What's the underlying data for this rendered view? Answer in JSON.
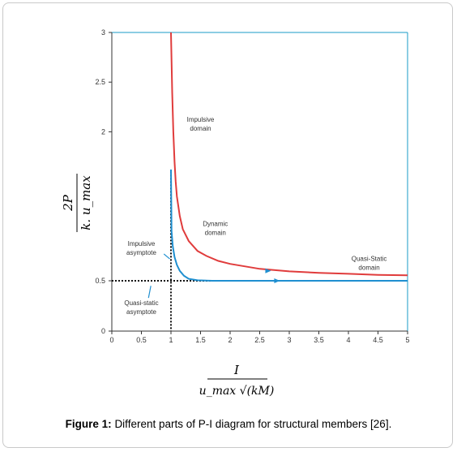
{
  "caption": {
    "label": "Figure 1:",
    "text": "Different parts of P-I diagram for structural members [26]."
  },
  "colors": {
    "pi_curve": "#e03c3c",
    "asymptote_curve": "#1f8fd0",
    "plot_border": "#1a9bc7"
  },
  "chart_data": {
    "type": "line",
    "xlim": [
      0,
      5
    ],
    "ylim": [
      0,
      3
    ],
    "x_ticks": [
      0,
      0.5,
      1,
      1.5,
      2,
      2.5,
      3,
      3.5,
      4,
      4.5,
      5
    ],
    "x_tick_labels": [
      "0",
      "0.5",
      "1",
      "1.5",
      "2",
      "2.5",
      "3",
      "3.5",
      "4",
      "4.5",
      "5"
    ],
    "y_ticks": [
      0,
      0.5,
      2,
      2.5,
      3
    ],
    "y_tick_labels": [
      "0",
      "0.5",
      "2",
      "2.5",
      "3"
    ],
    "xlabel": {
      "numerator": "I",
      "denominator": "u_max √(kM)"
    },
    "ylabel": {
      "numerator": "2P",
      "denominator": "k. u_max"
    },
    "grid": false,
    "series": [
      {
        "color": "#e03c3c",
        "points": [
          [
            1.0,
            3.0
          ],
          [
            1.02,
            2.4
          ],
          [
            1.04,
            2.0
          ],
          [
            1.06,
            1.7
          ],
          [
            1.08,
            1.5
          ],
          [
            1.1,
            1.35
          ],
          [
            1.15,
            1.15
          ],
          [
            1.2,
            1.02
          ],
          [
            1.3,
            0.9
          ],
          [
            1.45,
            0.8
          ],
          [
            1.6,
            0.75
          ],
          [
            1.8,
            0.7
          ],
          [
            2.0,
            0.67
          ],
          [
            2.5,
            0.62
          ],
          [
            3.0,
            0.595
          ],
          [
            3.5,
            0.58
          ],
          [
            4.0,
            0.57
          ],
          [
            4.5,
            0.56
          ],
          [
            5.0,
            0.555
          ]
        ]
      },
      {
        "color": "#1f8fd0",
        "points": [
          [
            1.0,
            1.62
          ],
          [
            1.01,
            1.0
          ],
          [
            1.03,
            0.85
          ],
          [
            1.06,
            0.74
          ],
          [
            1.1,
            0.66
          ],
          [
            1.15,
            0.6
          ],
          [
            1.22,
            0.55
          ],
          [
            1.3,
            0.52
          ],
          [
            1.45,
            0.505
          ],
          [
            1.7,
            0.5
          ],
          [
            5.0,
            0.5
          ]
        ]
      }
    ],
    "asymptotes": [
      {
        "orientation": "vertical",
        "x": 1.0
      },
      {
        "orientation": "horizontal",
        "y": 0.5
      }
    ],
    "annotations": [
      {
        "lines": [
          "Impulsive",
          "domain"
        ],
        "x": 1.5,
        "y": 2.1
      },
      {
        "lines": [
          "Dynamic",
          "domain"
        ],
        "x": 1.75,
        "y": 1.05
      },
      {
        "lines": [
          "Quasi-Static",
          "domain"
        ],
        "x": 4.35,
        "y": 0.7
      },
      {
        "lines": [
          "Impulsive",
          "asymptote"
        ],
        "x": 0.5,
        "y": 0.85
      },
      {
        "lines": [
          "Quasi-static",
          "asymptote"
        ],
        "x": 0.5,
        "y": 0.26
      }
    ]
  }
}
